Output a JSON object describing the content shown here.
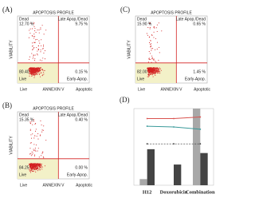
{
  "panels": [
    {
      "label": "(A)",
      "title": "APOPTOSIS PROFILE",
      "y_label": "VIABILITY",
      "x_label": "ANNEXIN V",
      "x_left": "Live",
      "x_right": "Apoptotic",
      "quadrants": [
        {
          "name": "Dead",
          "value": "12.70 %"
        },
        {
          "name": "Late Apop./Dead",
          "value": "9.75 %"
        },
        {
          "name": "Live",
          "value": "80.40"
        },
        {
          "name": "Early-Apop.",
          "value": "0.15 %"
        }
      ]
    },
    {
      "label": "(B)",
      "title": "APOPTOSIS PROFILE",
      "y_label": "VIABILITY",
      "x_label": "ANNEXIN V",
      "x_left": "Live",
      "x_right": "Apoptotic",
      "quadrants": [
        {
          "name": "Dead",
          "value": "15.35 %"
        },
        {
          "name": "Late Apop./Dead",
          "value": "0.40 %"
        },
        {
          "name": "Live",
          "value": "84.25"
        },
        {
          "name": "Early-Apop.",
          "value": "0.00 %"
        }
      ]
    },
    {
      "label": "(C)",
      "title": "APOPTOSIS PROFILE",
      "y_label": "VIABILITY",
      "x_label": "ANNEXIN V",
      "x_left": "Live",
      "x_right": "Apoptotic",
      "quadrants": [
        {
          "name": "Dead",
          "value": "15.90 %"
        },
        {
          "name": "Late Apop./Dead",
          "value": "0.65 %"
        },
        {
          "name": "Live",
          "value": "82.00"
        },
        {
          "name": "Early-Apop.",
          "value": "1.45 %"
        }
      ]
    }
  ],
  "chart_data": {
    "type": "bar",
    "label": "(D)",
    "categories": [
      "H12",
      "Doxorubicin",
      "Combination"
    ],
    "ylim": [
      0,
      100
    ],
    "y2lim": [
      0,
      100
    ],
    "series": [
      {
        "kind": "bar",
        "color": "#a8a8a8",
        "values": [
          8,
          0,
          100
        ]
      },
      {
        "kind": "bar",
        "color": "#444444",
        "values": [
          47,
          27,
          42
        ]
      },
      {
        "kind": "line",
        "axis": "y2",
        "color": "#d9534f",
        "values": [
          87,
          87,
          89
        ]
      },
      {
        "kind": "line",
        "axis": "y2",
        "color": "#3a9a9a",
        "values": [
          77,
          76,
          73
        ]
      },
      {
        "kind": "line",
        "axis": "y2",
        "color": "#333333",
        "dash": true,
        "values": [
          54,
          54,
          54
        ]
      }
    ]
  }
}
